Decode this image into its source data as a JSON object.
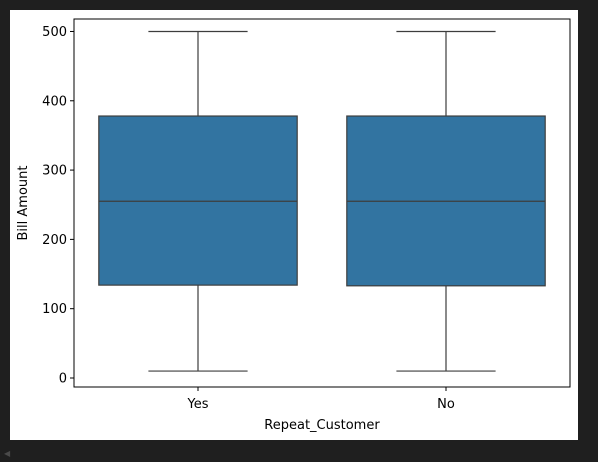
{
  "chart_data": {
    "type": "box",
    "title": "",
    "xlabel": "Repeat_Customer",
    "ylabel": "Bill Amount",
    "ylim": [
      -13,
      518
    ],
    "yticks": [
      0,
      100,
      200,
      300,
      400,
      500
    ],
    "categories": [
      "Yes",
      "No"
    ],
    "boxes": [
      {
        "category": "Yes",
        "min": 10,
        "q1": 134,
        "median": 255,
        "q3": 378,
        "max": 500
      },
      {
        "category": "No",
        "min": 10,
        "q1": 133,
        "median": 255,
        "q3": 378,
        "max": 500
      }
    ],
    "box_color": "#3274a1",
    "line_color": "#3d3d3d",
    "grid": false,
    "legend": "none"
  },
  "ui": {
    "scroll_arrow_icon": "triangle-left-icon"
  }
}
